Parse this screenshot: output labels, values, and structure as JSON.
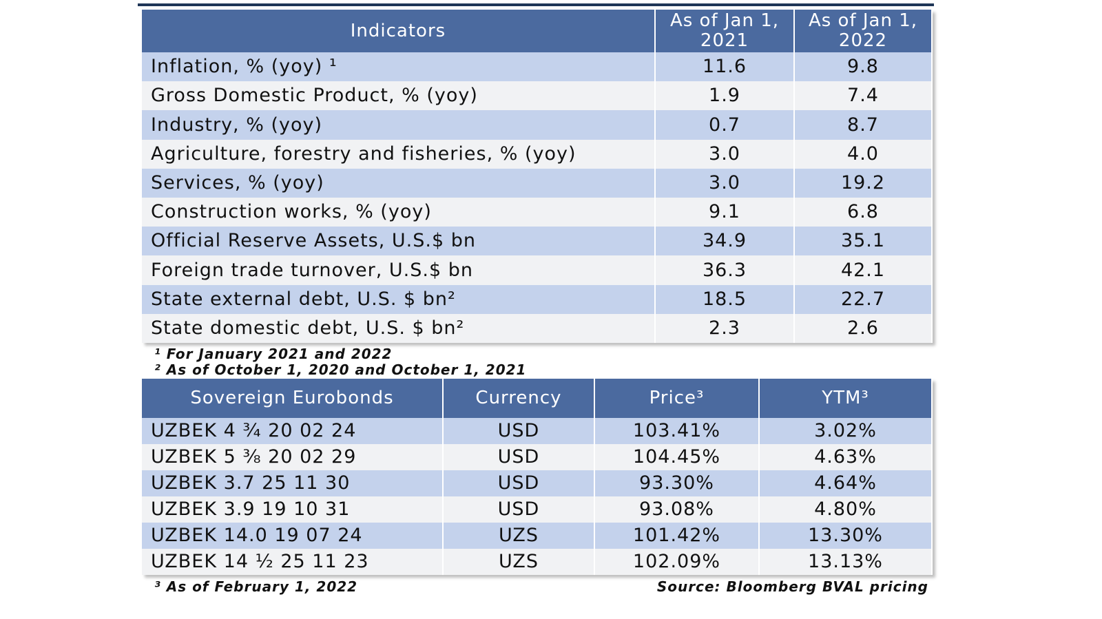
{
  "table1": {
    "header": [
      "Indicators",
      "As of Jan 1, 2021",
      "As of Jan 1, 2022"
    ],
    "rows": [
      [
        "Inflation, % (yoy) ¹",
        "11.6",
        "9.8"
      ],
      [
        "Gross Domestic Product, % (yoy)",
        "1.9",
        "7.4"
      ],
      [
        "Industry, % (yoy)",
        "0.7",
        "8.7"
      ],
      [
        "Agriculture, forestry and fisheries, % (yoy)",
        "3.0",
        "4.0"
      ],
      [
        "Services, % (yoy)",
        "3.0",
        "19.2"
      ],
      [
        "Construction works, % (yoy)",
        "9.1",
        "6.8"
      ],
      [
        "Official Reserve Assets, U.S.$ bn",
        "34.9",
        "35.1"
      ],
      [
        "Foreign trade turnover, U.S.$ bn",
        "36.3",
        "42.1"
      ],
      [
        "State external debt, U.S. $ bn²",
        "18.5",
        "22.7"
      ],
      [
        "State domestic debt, U.S. $ bn²",
        "2.3",
        "2.6"
      ]
    ]
  },
  "footnotes1": [
    "¹ For January 2021 and 2022",
    "² As of October 1, 2020 and October 1, 2021"
  ],
  "table2": {
    "header": [
      "Sovereign Eurobonds",
      "Currency",
      "Price³",
      "YTM³"
    ],
    "rows": [
      [
        "UZBEK 4 ¾ 20 02 24",
        "USD",
        "103.41%",
        "3.02%"
      ],
      [
        "UZBEK 5 ⅜ 20 02 29",
        "USD",
        "104.45%",
        "4.63%"
      ],
      [
        "UZBEK 3.7 25 11 30",
        "USD",
        "93.30%",
        "4.64%"
      ],
      [
        "UZBEK 3.9 19 10 31",
        "USD",
        "93.08%",
        "4.80%"
      ],
      [
        "UZBEK 14.0 19 07 24",
        "UZS",
        "101.42%",
        "13.30%"
      ],
      [
        "UZBEK 14 ½ 25 11 23",
        "UZS",
        "102.09%",
        "13.13%"
      ]
    ]
  },
  "footnote2": "³ As of February 1, 2022",
  "source": "Source: Bloomberg BVAL pricing"
}
